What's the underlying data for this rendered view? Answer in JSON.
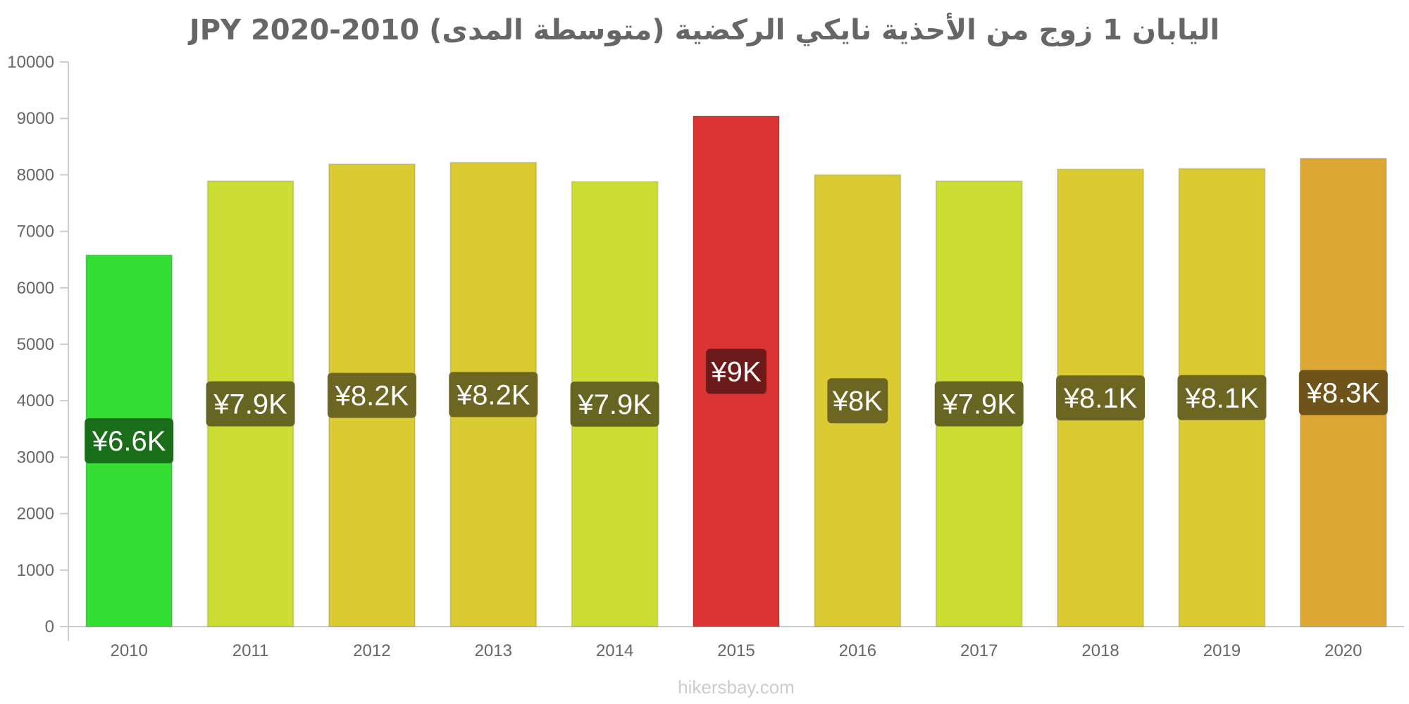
{
  "chart_data": {
    "type": "bar",
    "title": "اليابان 1 زوج من الأحذية نايكي الركضية (متوسطة المدى) JPY 2020-2010",
    "categories": [
      "2010",
      "2011",
      "2012",
      "2013",
      "2014",
      "2015",
      "2016",
      "2017",
      "2018",
      "2019",
      "2020"
    ],
    "values": [
      6580,
      7890,
      8190,
      8220,
      7880,
      9040,
      8000,
      7890,
      8100,
      8110,
      8290
    ],
    "labels": [
      "¥6.6K",
      "¥7.9K",
      "¥8.2K",
      "¥8.2K",
      "¥7.9K",
      "¥9K",
      "¥8K",
      "¥7.9K",
      "¥8.1K",
      "¥8.1K",
      "¥8.3K"
    ],
    "bar_colors": [
      "#33dd33",
      "#ccdd33",
      "#dacb33",
      "#dacb33",
      "#ccdd33",
      "#dc3333",
      "#dacb33",
      "#ccdd33",
      "#dacb33",
      "#dacb33",
      "#dca833"
    ],
    "label_colors": [
      "#1a6e1a",
      "#666622",
      "#6d6522",
      "#6d6522",
      "#666622",
      "#6e1a1a",
      "#6d6522",
      "#666622",
      "#6d6522",
      "#6d6522",
      "#6e541a"
    ],
    "yticks": [
      0,
      1000,
      2000,
      3000,
      4000,
      5000,
      6000,
      7000,
      8000,
      9000,
      10000
    ],
    "ylim": [
      0,
      10000
    ],
    "xlabel": "",
    "ylabel": "",
    "grid": false,
    "legend": "none"
  },
  "watermark": "hikersbay.com"
}
